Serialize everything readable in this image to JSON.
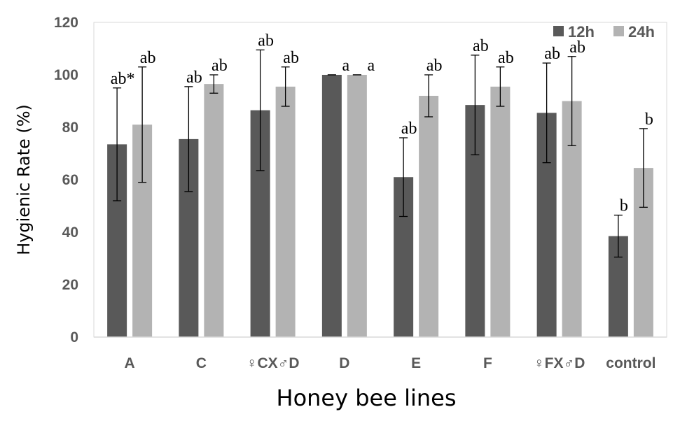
{
  "chart_data": {
    "type": "bar",
    "title": "",
    "xlabel": "Honey bee lines",
    "ylabel": "Hygienic Rate (%)",
    "ylim": [
      0,
      120
    ],
    "yticks": [
      "0",
      "20",
      "40",
      "60",
      "80",
      "100",
      "120"
    ],
    "categories": [
      "A",
      "C",
      "♀CX♂D",
      "D",
      "E",
      "F",
      "♀FX♂D",
      "control"
    ],
    "legend_position": "top-right",
    "series": [
      {
        "name": "12h",
        "color": "#595959",
        "values": [
          73.5,
          75.5,
          86.5,
          100,
          61,
          88.5,
          85.5,
          38.5
        ],
        "errors": [
          21.5,
          20,
          23,
          0,
          15,
          19,
          19,
          8
        ],
        "labels": [
          "ab*",
          "ab",
          "ab",
          "a",
          "ab",
          "ab",
          "ab",
          "b"
        ]
      },
      {
        "name": "24h",
        "color": "#b3b3b3",
        "values": [
          81,
          96.5,
          95.5,
          100,
          92,
          95.5,
          90,
          64.5
        ],
        "errors": [
          22,
          3.5,
          7.5,
          0,
          8,
          7.5,
          17,
          15
        ],
        "labels": [
          "ab",
          "ab",
          "ab",
          "a",
          "ab",
          "ab",
          "ab",
          "b"
        ]
      }
    ]
  }
}
